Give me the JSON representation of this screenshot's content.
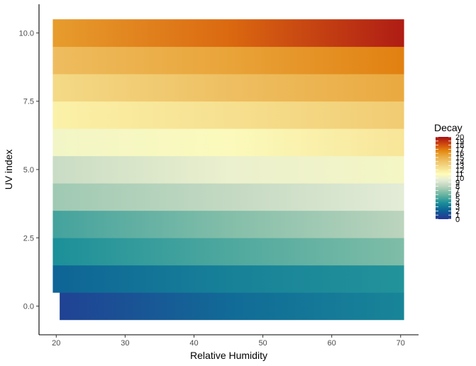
{
  "chart_data": {
    "type": "heatmap",
    "xlabel": "Relative Humidity",
    "ylabel": "UV index",
    "xlim": [
      17.5,
      72.6
    ],
    "ylim": [
      -1.05,
      11.05
    ],
    "x_ticks": [
      20,
      30,
      40,
      50,
      60,
      70
    ],
    "x_tick_labels": [
      "20",
      "30",
      "40",
      "50",
      "60",
      "70"
    ],
    "y_ticks": [
      0.0,
      2.5,
      5.0,
      7.5,
      10.0
    ],
    "y_tick_labels": [
      "0.0",
      "2.5",
      "5.0",
      "7.5",
      "10.0"
    ],
    "x_range": [
      19.5,
      70.5
    ],
    "x_range_bottom_row": [
      20.5,
      70.5
    ],
    "y_levels": [
      0,
      1,
      2,
      3,
      4,
      5,
      6,
      7,
      8,
      9,
      10
    ],
    "x_samples": [
      20,
      45,
      70
    ],
    "decay_values": [
      [
        0.6,
        2.5,
        3.6
      ],
      [
        2.2,
        3.4,
        4.2
      ],
      [
        4.0,
        5.3,
        6.5
      ],
      [
        5.0,
        6.6,
        8.0
      ],
      [
        7.3,
        8.3,
        9.5
      ],
      [
        8.5,
        9.9,
        10.4
      ],
      [
        10.3,
        10.8,
        12.2
      ],
      [
        11.6,
        12.5,
        13.6
      ],
      [
        12.8,
        14.2,
        15.3
      ],
      [
        14.3,
        15.5,
        16.8
      ],
      [
        15.8,
        17.4,
        19.6
      ]
    ],
    "legend": {
      "title": "Decay",
      "position": "right",
      "ticks": [
        "0",
        "1",
        "2",
        "3",
        "4",
        "5",
        "6",
        "7",
        "8",
        "9",
        "10",
        "11",
        "12",
        "13",
        "14",
        "15",
        "16",
        "17",
        "18",
        "19",
        "20"
      ],
      "range": [
        0,
        20
      ]
    },
    "palette": [
      {
        "value": 0,
        "color": "#283593"
      },
      {
        "value": 2,
        "color": "#0d5f96"
      },
      {
        "value": 4,
        "color": "#1b8f99"
      },
      {
        "value": 6,
        "color": "#6ab5a0"
      },
      {
        "value": 8,
        "color": "#bcd4bd"
      },
      {
        "value": 9.5,
        "color": "#e4ecd6"
      },
      {
        "value": 11,
        "color": "#fffcb8"
      },
      {
        "value": 13,
        "color": "#f3d682"
      },
      {
        "value": 15,
        "color": "#ebb04c"
      },
      {
        "value": 16.5,
        "color": "#e48c12"
      },
      {
        "value": 18,
        "color": "#d5520e"
      },
      {
        "value": 20,
        "color": "#a50f15"
      }
    ],
    "grid": false
  }
}
